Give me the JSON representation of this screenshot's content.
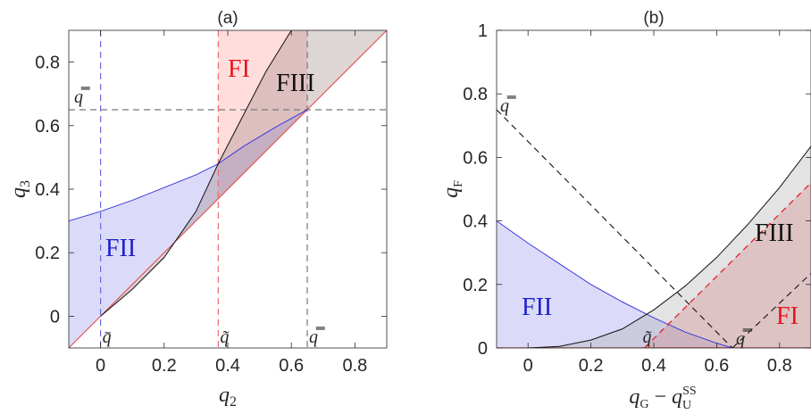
{
  "chart_data": [
    {
      "type": "area",
      "title": "(a)",
      "xlabel": "q2",
      "ylabel": "q3",
      "xlim": [
        -0.1,
        0.9
      ],
      "ylim": [
        -0.1,
        0.9
      ],
      "xticks": [
        "0",
        "0.2",
        "0.4",
        "0.6",
        "0.8"
      ],
      "yticks": [
        "0",
        "0.2",
        "0.4",
        "0.6",
        "0.8"
      ],
      "xtick_values": [
        0,
        0.2,
        0.4,
        0.6,
        0.8
      ],
      "ytick_values": [
        0,
        0.2,
        0.4,
        0.6,
        0.8
      ],
      "grid": false,
      "thresholds": {
        "q_bar": 0.0,
        "q_tilde": 0.37,
        "q_dbar": 0.65
      },
      "threshold_labels": {
        "q_bar": "q̄",
        "q_tilde": "q̃",
        "q_dbar": "q̿"
      },
      "curves": {
        "diagonal": {
          "x": [
            -0.1,
            0.9
          ],
          "y": [
            -0.1,
            0.9
          ],
          "color": "#e0473e"
        },
        "blue": {
          "x": [
            -0.1,
            0.0,
            0.1,
            0.2,
            0.3,
            0.37,
            0.45,
            0.55,
            0.65
          ],
          "y": [
            0.3,
            0.33,
            0.365,
            0.405,
            0.445,
            0.48,
            0.535,
            0.595,
            0.65
          ],
          "color": "#3b3bdd"
        },
        "black": {
          "x": [
            0.0,
            0.1,
            0.2,
            0.3,
            0.37,
            0.45,
            0.52,
            0.6
          ],
          "y": [
            0.0,
            0.085,
            0.185,
            0.33,
            0.48,
            0.635,
            0.77,
            0.9
          ],
          "color": "#111111"
        }
      },
      "regions": [
        {
          "name": "FI",
          "color": "#e8141c"
        },
        {
          "name": "FII",
          "color": "#2020cc"
        },
        {
          "name": "FIII",
          "color": "#111111"
        }
      ]
    },
    {
      "type": "area",
      "title": "(b)",
      "xlabel": "qG − qU^SS",
      "ylabel": "qF",
      "xlim": [
        -0.1,
        0.9
      ],
      "ylim": [
        0,
        1
      ],
      "xticks": [
        "0",
        "0.2",
        "0.4",
        "0.6",
        "0.8"
      ],
      "yticks": [
        "0",
        "0.2",
        "0.4",
        "0.6",
        "0.8",
        "1"
      ],
      "xtick_values": [
        0,
        0.2,
        0.4,
        0.6,
        0.8
      ],
      "ytick_values": [
        0,
        0.2,
        0.4,
        0.6,
        0.8,
        1
      ],
      "grid": false,
      "thresholds": {
        "q_tilde": 0.37,
        "q_dbar": 0.65,
        "q_dbar_y": 0.75
      },
      "threshold_labels": {
        "q_tilde": "q̃",
        "q_dbar": "q̿"
      },
      "curves": {
        "blue": {
          "x": [
            -0.1,
            0.0,
            0.1,
            0.2,
            0.3,
            0.4,
            0.5,
            0.6,
            0.65
          ],
          "y": [
            0.4,
            0.33,
            0.265,
            0.2,
            0.145,
            0.095,
            0.05,
            0.015,
            0.0
          ],
          "color": "#3b3bdd"
        },
        "black": {
          "x": [
            0.0,
            0.1,
            0.2,
            0.3,
            0.4,
            0.5,
            0.6,
            0.7,
            0.8,
            0.9
          ],
          "y": [
            0.0,
            0.005,
            0.025,
            0.06,
            0.12,
            0.195,
            0.285,
            0.39,
            0.505,
            0.635
          ],
          "color": "#111111"
        },
        "red_dashed": {
          "x": [
            0.37,
            0.9
          ],
          "y": [
            0.0,
            0.52
          ],
          "color": "#e8141c"
        },
        "black_dashed_down": {
          "x": [
            -0.1,
            0.65
          ],
          "y": [
            0.75,
            0.0
          ],
          "color": "#111111"
        },
        "black_dashed_up": {
          "x": [
            0.65,
            0.9
          ],
          "y": [
            0.0,
            0.235
          ],
          "color": "#111111"
        }
      },
      "regions": [
        {
          "name": "FII",
          "color": "#2020cc"
        },
        {
          "name": "FIII",
          "color": "#111111"
        },
        {
          "name": "FI",
          "color": "#e8141c"
        }
      ]
    }
  ]
}
